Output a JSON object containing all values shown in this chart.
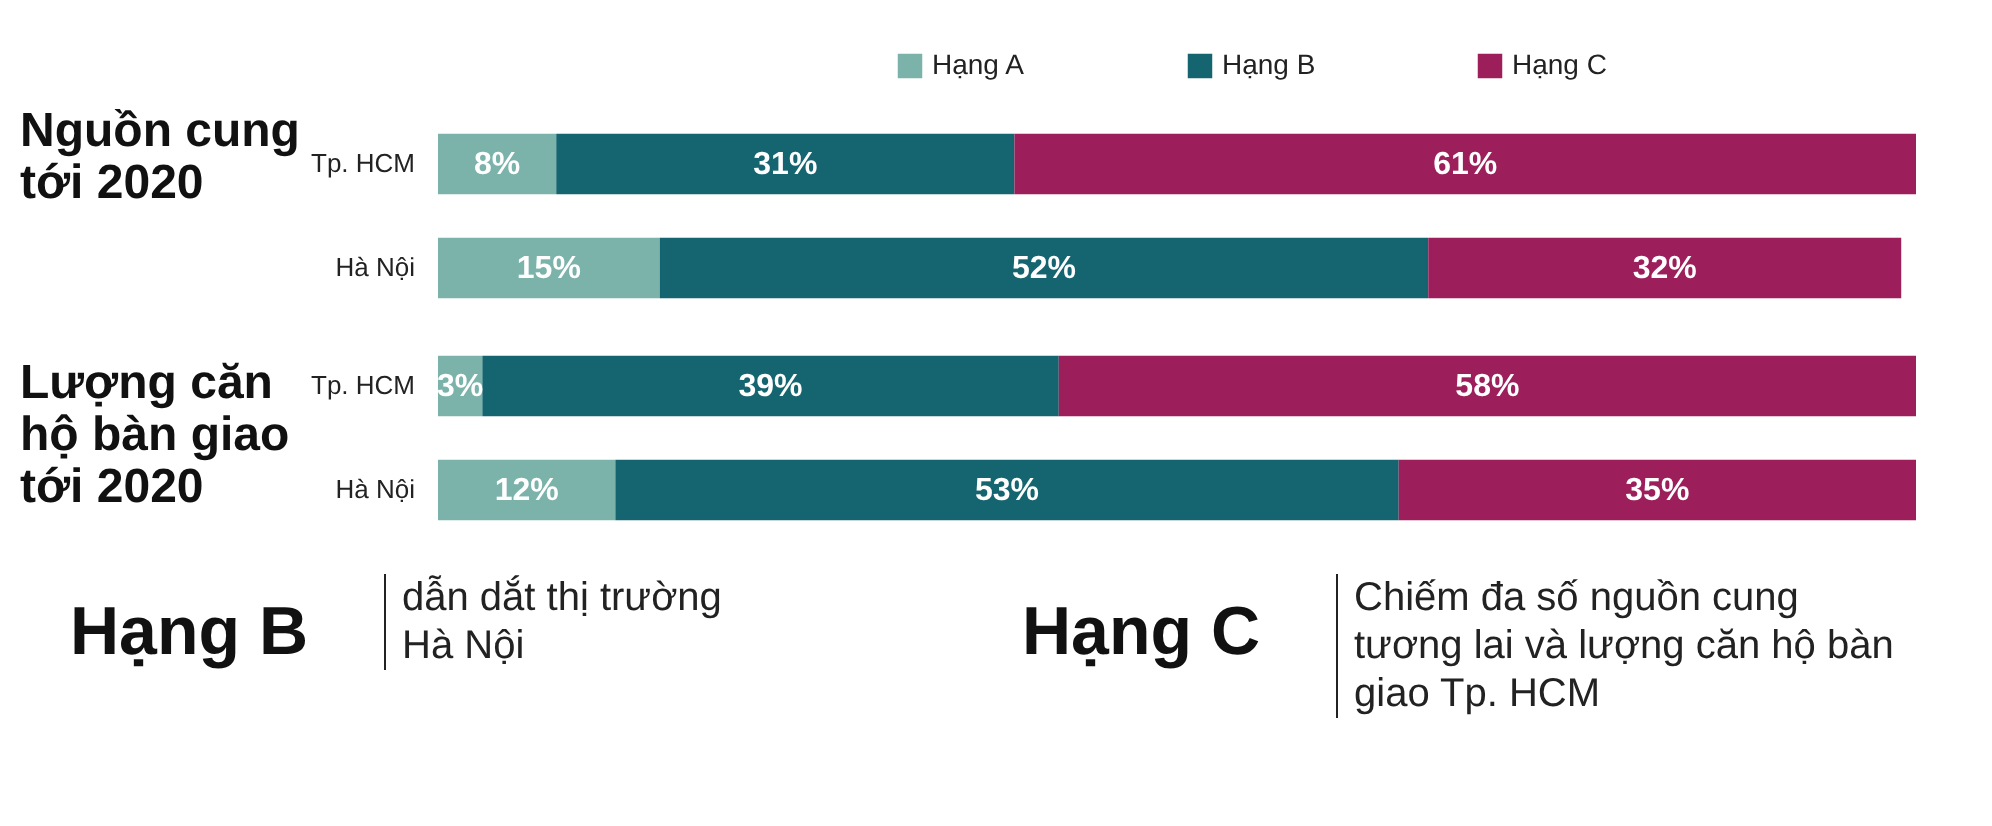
{
  "chart_data": [
    {
      "type": "bar",
      "title": "Nguồn cung tới 2020",
      "orientation": "horizontal",
      "stacked": true,
      "categories": [
        "Tp. HCM",
        "Hà Nội"
      ],
      "xlim": [
        0,
        100
      ],
      "tick_labels": "y",
      "legend": "top right",
      "series": [
        {
          "name": "Hạng A",
          "color": "#7bb3aa",
          "values": [
            8,
            15
          ],
          "value_labels": [
            "8%",
            "15%"
          ]
        },
        {
          "name": "Hạng B",
          "color": "#156570",
          "values": [
            31,
            52
          ],
          "value_labels": [
            "31%",
            "52%"
          ]
        },
        {
          "name": "Hạng C",
          "color": "#9c1f5b",
          "values": [
            61,
            32
          ],
          "value_labels": [
            "61%",
            "32%"
          ]
        }
      ]
    },
    {
      "type": "bar",
      "title": "Lượng căn hộ bàn giao tới 2020",
      "orientation": "horizontal",
      "stacked": true,
      "categories": [
        "Tp. HCM",
        "Hà Nội"
      ],
      "xlim": [
        0,
        100
      ],
      "tick_labels": "y",
      "series": [
        {
          "color": "#7bb3aa",
          "values": [
            3,
            12
          ],
          "value_labels": [
            "3%",
            "12%"
          ]
        },
        {
          "color": "#156570",
          "values": [
            39,
            53
          ],
          "value_labels": [
            "39%",
            "53%"
          ]
        },
        {
          "color": "#9c1f5b",
          "values": [
            58,
            35
          ],
          "value_labels": [
            "58%",
            "35%"
          ]
        }
      ]
    },
    {
      "type": "other",
      "annotations": [
        "Hạng B",
        "dẫn dắt thị trường Hà Nội",
        "Hạng C",
        "Chiếm đa số nguồn cung tương lai và lượng căn hộ bàn giao Tp. HCM"
      ]
    }
  ]
}
